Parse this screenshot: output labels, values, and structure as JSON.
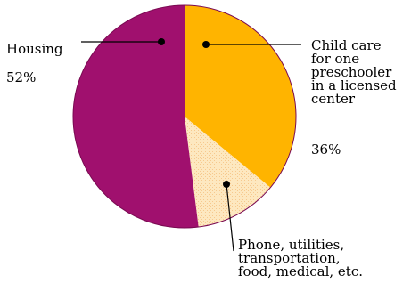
{
  "chart_data": {
    "type": "pie",
    "slices": [
      {
        "label_lines": [
          "Child care",
          "for one",
          "preschooler",
          "in a licensed",
          "center"
        ],
        "value": 36,
        "value_text": "36%",
        "color": "#ffb400"
      },
      {
        "label_lines": [
          "Phone, utilities,",
          "transportation,",
          "food, medical, etc."
        ],
        "value": 12,
        "value_text": "",
        "color": "#fde8c0"
      },
      {
        "label_lines": [
          "Housing"
        ],
        "value": 52,
        "value_text": "52%",
        "color": "#a0106e"
      }
    ],
    "start_angle": "12 o'clock",
    "direction": "clockwise",
    "legend": "none"
  }
}
